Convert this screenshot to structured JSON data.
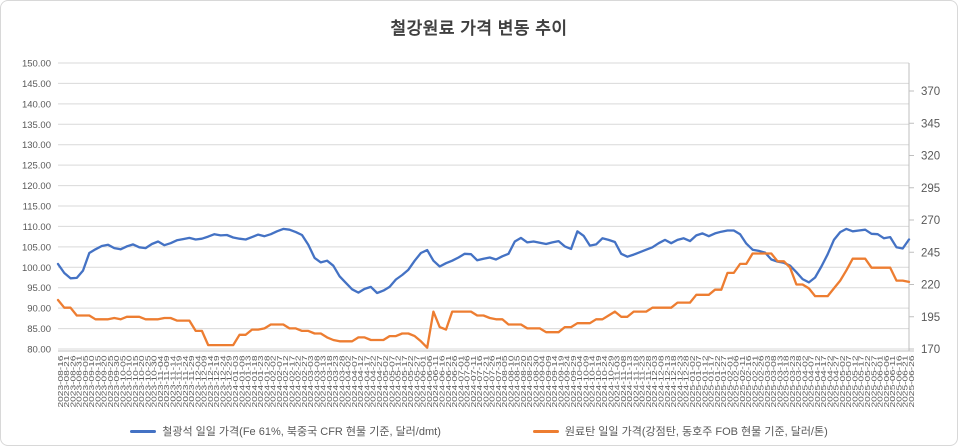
{
  "chart_data": {
    "type": "line",
    "title": "철강원료 가격 변동 추이",
    "grid": true,
    "legend_position": "bottom",
    "x": [
      "2023-08-16",
      "2023-08-21",
      "2023-08-26",
      "2023-08-31",
      "2023-09-05",
      "2023-09-10",
      "2023-09-15",
      "2023-09-20",
      "2023-09-25",
      "2023-09-30",
      "2023-10-05",
      "2023-10-10",
      "2023-10-15",
      "2023-10-20",
      "2023-10-25",
      "2023-10-30",
      "2023-11-04",
      "2023-11-09",
      "2023-11-14",
      "2023-11-19",
      "2023-11-24",
      "2023-11-29",
      "2023-12-04",
      "2023-12-09",
      "2023-12-14",
      "2023-12-19",
      "2023-12-24",
      "2023-12-29",
      "2024-01-03",
      "2024-01-08",
      "2024-01-13",
      "2024-01-18",
      "2024-01-23",
      "2024-01-28",
      "2024-02-02",
      "2024-02-07",
      "2024-02-12",
      "2024-02-17",
      "2024-02-22",
      "2024-02-27",
      "2024-03-03",
      "2024-03-08",
      "2024-03-13",
      "2024-03-18",
      "2024-03-23",
      "2024-03-28",
      "2024-04-02",
      "2024-04-07",
      "2024-04-12",
      "2024-04-17",
      "2024-04-22",
      "2024-04-27",
      "2024-05-02",
      "2024-05-07",
      "2024-05-12",
      "2024-05-17",
      "2024-05-22",
      "2024-05-27",
      "2024-06-01",
      "2024-06-06",
      "2024-06-11",
      "2024-06-16",
      "2024-06-21",
      "2024-06-26",
      "2024-07-01",
      "2024-07-06",
      "2024-07-11",
      "2024-07-16",
      "2024-07-21",
      "2024-07-26",
      "2024-07-31",
      "2024-08-05",
      "2024-08-10",
      "2024-08-15",
      "2024-08-20",
      "2024-08-25",
      "2024-08-30",
      "2024-09-04",
      "2024-09-09",
      "2024-09-14",
      "2024-09-19",
      "2024-09-24",
      "2024-09-29",
      "2024-10-04",
      "2024-10-09",
      "2024-10-14",
      "2024-10-19",
      "2024-10-24",
      "2024-10-29",
      "2024-11-03",
      "2024-11-08",
      "2024-11-13",
      "2024-11-18",
      "2024-11-23",
      "2024-11-28",
      "2024-12-03",
      "2024-12-08",
      "2024-12-13",
      "2024-12-18",
      "2024-12-23",
      "2024-12-28",
      "2025-01-02",
      "2025-01-07",
      "2025-01-12",
      "2025-01-17",
      "2025-01-22",
      "2025-01-27",
      "2025-02-01",
      "2025-02-06",
      "2025-02-11",
      "2025-02-16",
      "2025-02-21",
      "2025-02-26",
      "2025-03-03",
      "2025-03-08",
      "2025-03-13",
      "2025-03-18",
      "2025-03-23",
      "2025-03-28",
      "2025-04-02",
      "2025-04-07",
      "2025-04-12",
      "2025-04-17",
      "2025-04-22",
      "2025-04-27",
      "2025-05-02",
      "2025-05-07",
      "2025-05-12",
      "2025-05-17",
      "2025-05-22",
      "2025-05-27",
      "2025-06-01",
      "2025-06-06",
      "2025-06-11",
      "2025-06-16",
      "2025-06-21",
      "2025-06-26"
    ],
    "series": [
      {
        "name": "철광석 일일 가격(Fe 61%, 북중국 CFR 현물 기준, 달러/dmt)",
        "axis": "left",
        "color": "#4472C4",
        "values": [
          100.8,
          98.6,
          97.3,
          97.4,
          99.2,
          103.5,
          104.4,
          105.2,
          105.5,
          104.7,
          104.4,
          105.1,
          105.6,
          104.9,
          104.7,
          105.7,
          106.3,
          105.4,
          105.9,
          106.6,
          106.9,
          107.2,
          106.8,
          107.0,
          107.5,
          108.1,
          107.8,
          107.9,
          107.3,
          107.0,
          106.8,
          107.4,
          108.0,
          107.6,
          108.1,
          108.8,
          109.4,
          109.2,
          108.6,
          107.9,
          105.5,
          102.3,
          101.2,
          101.6,
          100.4,
          97.8,
          96.2,
          94.6,
          93.8,
          94.7,
          95.2,
          93.7,
          94.3,
          95.2,
          97.0,
          98.1,
          99.4,
          101.6,
          103.5,
          104.2,
          101.6,
          100.2,
          101.0,
          101.6,
          102.4,
          103.3,
          103.2,
          101.7,
          102.1,
          102.4,
          101.9,
          102.7,
          103.3,
          106.3,
          107.2,
          106.1,
          106.3,
          106.0,
          105.7,
          106.1,
          106.4,
          105.1,
          104.5,
          108.8,
          107.7,
          105.3,
          105.6,
          107.1,
          106.7,
          106.2,
          103.3,
          102.6,
          103.1,
          103.7,
          104.3,
          104.9,
          105.9,
          106.7,
          105.9,
          106.7,
          107.1,
          106.4,
          107.8,
          108.3,
          107.6,
          108.3,
          108.7,
          109.0,
          109.0,
          108.1,
          105.8,
          104.3,
          104.0,
          103.6,
          101.9,
          101.4,
          101.1,
          100.4,
          98.8,
          97.1,
          96.3,
          97.5,
          100.2,
          103.2,
          106.7,
          108.6,
          109.4,
          108.8,
          109.0,
          109.2,
          108.2,
          108.1,
          107.1,
          107.4,
          104.9,
          104.6,
          106.8
        ]
      },
      {
        "name": "원료탄 일일 가격(강점탄, 동호주 FOB 현물 기준, 달러/톤)",
        "axis": "right",
        "color": "#ED7D31",
        "values": [
          208,
          202,
          202,
          196,
          196,
          196,
          193,
          193,
          193,
          194,
          193,
          195,
          195,
          195,
          193,
          193,
          193,
          194,
          194,
          192,
          192,
          192,
          184,
          184,
          173,
          173,
          173,
          173,
          173,
          181,
          181,
          185,
          185,
          186,
          189,
          189,
          189,
          186,
          186,
          184,
          184,
          182,
          182,
          179,
          177,
          176,
          176,
          176,
          179,
          179,
          177,
          177,
          177,
          180,
          180,
          182,
          182,
          180,
          176,
          171,
          199,
          187,
          185,
          199,
          199,
          199,
          199,
          196,
          196,
          194,
          193,
          193,
          189,
          189,
          189,
          186,
          186,
          186,
          183,
          183,
          183,
          187,
          187,
          190,
          190,
          190,
          193,
          193,
          196,
          199,
          195,
          195,
          199,
          199,
          199,
          202,
          202,
          202,
          202,
          206,
          206,
          206,
          212,
          212,
          212,
          216,
          216,
          229,
          229,
          236,
          236,
          244,
          244,
          244,
          244,
          238,
          238,
          233,
          220,
          220,
          217,
          211,
          211,
          211,
          217,
          223,
          231,
          240,
          240,
          240,
          233,
          233,
          233,
          233,
          223,
          223,
          222
        ]
      }
    ],
    "left_axis": {
      "min": 80,
      "max": 150,
      "step": 5,
      "tick_labels": [
        "150.00",
        "145.00",
        "140.00",
        "135.00",
        "130.00",
        "125.00",
        "120.00",
        "115.00",
        "110.00",
        "105.00",
        "100.00",
        "95.00",
        "90.00",
        "85.00",
        "80.00"
      ]
    },
    "right_axis": {
      "min": 170,
      "max": 370,
      "step": 25,
      "tick_labels": [
        "370",
        "345",
        "320",
        "295",
        "270",
        "245",
        "220",
        "195",
        "170"
      ]
    },
    "colors": {
      "grid": "#D9D9D9",
      "axis_line": "#BFBFBF",
      "axis_text": "#595959",
      "title_text": "#404040"
    }
  }
}
